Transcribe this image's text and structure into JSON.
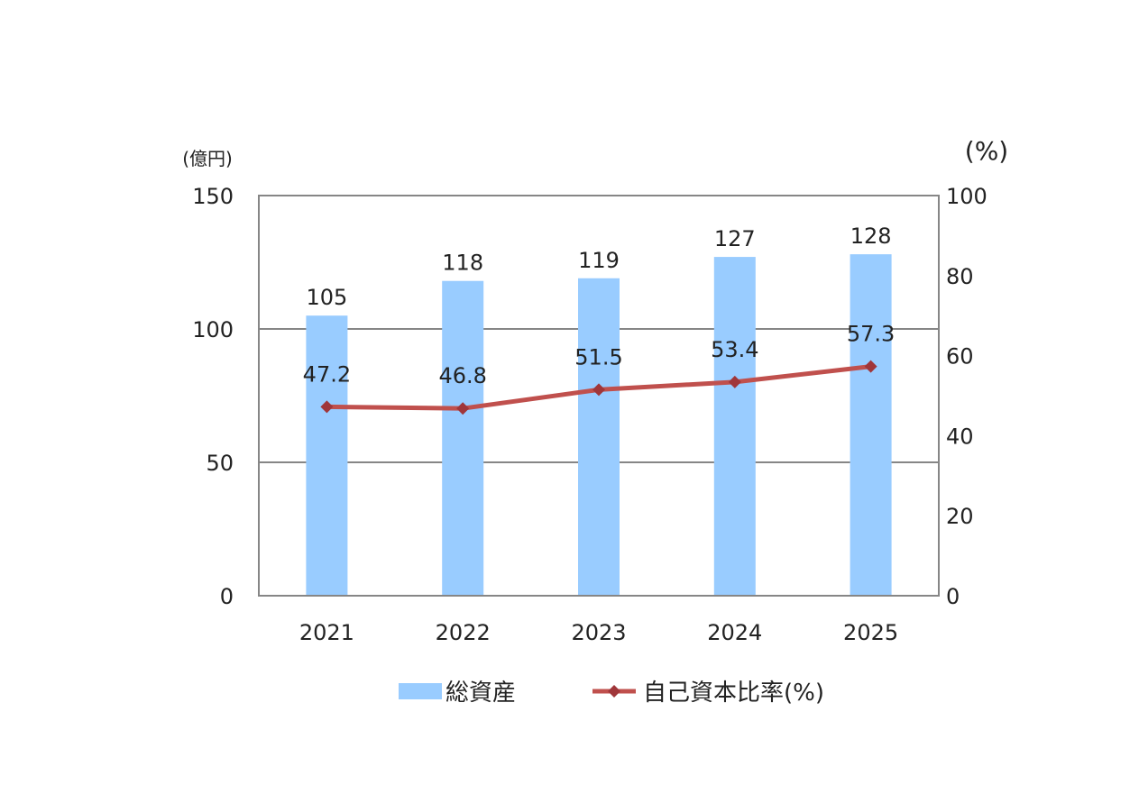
{
  "chart_data": {
    "type": "bar",
    "categories": [
      "2021",
      "2022",
      "2023",
      "2024",
      "2025"
    ],
    "series": [
      {
        "name": "総資産",
        "kind": "bar",
        "axis": "left",
        "values": [
          105,
          118,
          119,
          127,
          128
        ],
        "color": "#99CCFF"
      },
      {
        "name": "自己資本比率(%)",
        "kind": "line",
        "axis": "right",
        "values": [
          47.2,
          46.8,
          51.5,
          53.4,
          57.3
        ],
        "color": "#C0504D"
      }
    ],
    "y_left": {
      "unit_label": "(億円)",
      "ylim": [
        0,
        150
      ],
      "ticks": [
        0,
        50,
        100,
        150
      ]
    },
    "y_right": {
      "unit_label": "(%)",
      "ylim": [
        0,
        100
      ],
      "ticks": [
        0,
        20,
        40,
        60,
        80,
        100
      ]
    },
    "gridlines": true,
    "legend_position": "bottom"
  }
}
